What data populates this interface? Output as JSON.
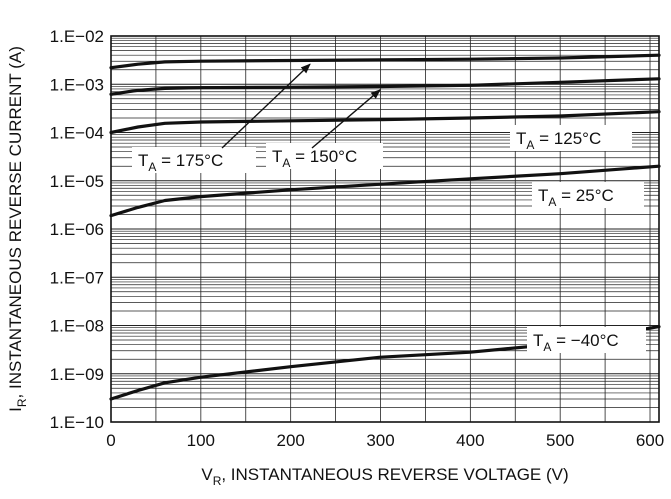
{
  "chart_data": {
    "type": "line",
    "title": "",
    "xlabel": "V",
    "xlabel_sub": "R",
    "xlabel_rest": ", INSTANTANEOUS REVERSE VOLTAGE (V)",
    "ylabel": "I",
    "ylabel_sub": "R",
    "ylabel_rest": ", INSTANTANEOUS REVERSE CURRENT (A)",
    "x_ticks": [
      "0",
      "100",
      "200",
      "300",
      "400",
      "500",
      "600"
    ],
    "y_ticks": [
      "1.E−02",
      "1.E−03",
      "1.E−04",
      "1.E−05",
      "1.E−06",
      "1.E−07",
      "1.E−08",
      "1.E−09",
      "1.E−10"
    ],
    "xlim": [
      0,
      610
    ],
    "ylim": [
      1e-10,
      0.01
    ],
    "y_scale": "log",
    "grid": true,
    "series": [
      {
        "name": "T_A = 175°C",
        "label_main": "T",
        "label_sub": "A",
        "label_rest": " = 175°C",
        "x": [
          0,
          30,
          60,
          100,
          200,
          300,
          400,
          500,
          610
        ],
        "y": [
          0.0022,
          0.0026,
          0.0029,
          0.003,
          0.0031,
          0.0032,
          0.0033,
          0.0035,
          0.004
        ]
      },
      {
        "name": "T_A = 150°C",
        "label_main": "T",
        "label_sub": "A",
        "label_rest": " = 150°C",
        "x": [
          0,
          30,
          60,
          100,
          200,
          300,
          400,
          500,
          610
        ],
        "y": [
          0.00062,
          0.00075,
          0.00082,
          0.00085,
          0.00087,
          0.0009,
          0.00095,
          0.0011,
          0.0013
        ]
      },
      {
        "name": "T_A = 125°C",
        "label_main": "T",
        "label_sub": "A",
        "label_rest": " = 125°C",
        "x": [
          0,
          30,
          60,
          100,
          200,
          300,
          400,
          500,
          610
        ],
        "y": [
          0.0001,
          0.00013,
          0.000155,
          0.000165,
          0.000175,
          0.000185,
          0.0002,
          0.00022,
          0.00027
        ]
      },
      {
        "name": "T_A = 25°C",
        "label_main": "T",
        "label_sub": "A",
        "label_rest": " = 25°C",
        "x": [
          0,
          30,
          60,
          100,
          200,
          300,
          400,
          500,
          610
        ],
        "y": [
          1.9e-06,
          2.8e-06,
          3.9e-06,
          4.7e-06,
          6.5e-06,
          8.5e-06,
          1.1e-05,
          1.4e-05,
          2e-05
        ]
      },
      {
        "name": "T_A = −40°C",
        "label_main": "T",
        "label_sub": "A",
        "label_rest": " = −40°C",
        "x": [
          0,
          30,
          60,
          100,
          200,
          300,
          400,
          500,
          610
        ],
        "y": [
          3e-10,
          4.5e-10,
          6.5e-10,
          8.5e-10,
          1.4e-09,
          2.2e-09,
          2.8e-09,
          4.2e-09,
          9.5e-09
        ]
      }
    ]
  }
}
